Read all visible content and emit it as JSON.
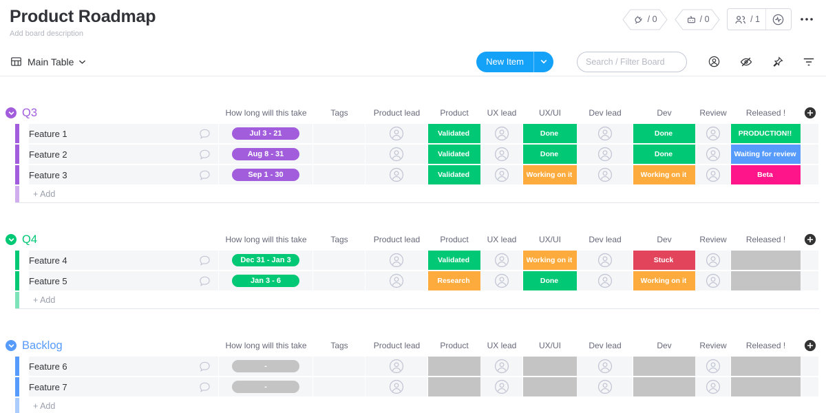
{
  "header": {
    "title": "Product Roadmap",
    "description": "Add board description",
    "counters": [
      {
        "icon": "integrations-icon",
        "label": "/ 0"
      },
      {
        "icon": "automations-icon",
        "label": "/ 0"
      },
      {
        "icon": "members-icon",
        "label": "/ 1"
      }
    ]
  },
  "toolbar": {
    "view_label": "Main Table",
    "new_item_label": "New Item",
    "search_placeholder": "Search / Filter Board"
  },
  "columns": {
    "labels": [
      "How long will this take",
      "Tags",
      "Product lead",
      "Product",
      "UX lead",
      "UX/UI",
      "Dev lead",
      "Dev",
      "Review",
      "Released !"
    ]
  },
  "icons": {
    "view": "table-grid-icon",
    "toolbar_right": [
      "person-icon",
      "hidden-eye-icon",
      "pin-icon",
      "filter-icon"
    ],
    "row": [
      "chat-bubble-icon",
      "avatar-icon"
    ],
    "group": [
      "collapse-chevron-icon",
      "add-column-plus-icon"
    ]
  },
  "colors": {
    "accent_blue": "#14a1f8",
    "status_green": "#00c875",
    "status_bright_green": "#00ca72",
    "status_orange": "#fdab3d",
    "status_red": "#e2445c",
    "status_blue": "#579bfc",
    "status_pink": "#ff158a",
    "status_gray": "#c4c4c4",
    "group_purple": "#a25ddc",
    "group_green": "#00c875",
    "group_blue": "#579bfc"
  },
  "groups": [
    {
      "title": "Q3",
      "color": "#a25ddc",
      "add_label": "+ Add",
      "rows": [
        {
          "name": "Feature 1",
          "timeline": {
            "label": "Jul 3 - 21",
            "color": "#a25ddc"
          },
          "product": {
            "label": "Validated",
            "color": "#00c875"
          },
          "uxui": {
            "label": "Done",
            "color": "#00c875"
          },
          "dev": {
            "label": "Done",
            "color": "#00c875"
          },
          "released": {
            "label": "PRODUCTION!!",
            "color": "#00ca72"
          }
        },
        {
          "name": "Feature 2",
          "timeline": {
            "label": "Aug 8 - 31",
            "color": "#a25ddc"
          },
          "product": {
            "label": "Validated",
            "color": "#00c875"
          },
          "uxui": {
            "label": "Done",
            "color": "#00c875"
          },
          "dev": {
            "label": "Done",
            "color": "#00c875"
          },
          "released": {
            "label": "Waiting for review",
            "color": "#579bfc"
          }
        },
        {
          "name": "Feature 3",
          "timeline": {
            "label": "Sep 1 - 30",
            "color": "#a25ddc"
          },
          "product": {
            "label": "Validated",
            "color": "#00c875"
          },
          "uxui": {
            "label": "Working on it",
            "color": "#fdab3d"
          },
          "dev": {
            "label": "Working on it",
            "color": "#fdab3d"
          },
          "released": {
            "label": "Beta",
            "color": "#ff158a"
          }
        }
      ]
    },
    {
      "title": "Q4",
      "color": "#00c875",
      "add_label": "+ Add",
      "rows": [
        {
          "name": "Feature 4",
          "timeline": {
            "label": "Dec 31 - Jan 3",
            "color": "#00c875"
          },
          "product": {
            "label": "Validated",
            "color": "#00c875"
          },
          "uxui": {
            "label": "Working on it",
            "color": "#fdab3d"
          },
          "dev": {
            "label": "Stuck",
            "color": "#e2445c"
          },
          "released": {
            "label": "",
            "color": "#c4c4c4"
          }
        },
        {
          "name": "Feature 5",
          "timeline": {
            "label": "Jan 3 - 6",
            "color": "#00c875"
          },
          "product": {
            "label": "Research",
            "color": "#fdab3d"
          },
          "uxui": {
            "label": "Done",
            "color": "#00c875"
          },
          "dev": {
            "label": "Working on it",
            "color": "#fdab3d"
          },
          "released": {
            "label": "",
            "color": "#c4c4c4"
          }
        }
      ]
    },
    {
      "title": "Backlog",
      "color": "#579bfc",
      "add_label": "+ Add",
      "rows": [
        {
          "name": "Feature 6",
          "timeline": {
            "label": "-",
            "color": "#c4c4c4"
          },
          "product": {
            "label": "",
            "color": "#c4c4c4"
          },
          "uxui": {
            "label": "",
            "color": "#c4c4c4"
          },
          "dev": {
            "label": "",
            "color": "#c4c4c4"
          },
          "released": {
            "label": "",
            "color": "#c4c4c4"
          }
        },
        {
          "name": "Feature 7",
          "timeline": {
            "label": "-",
            "color": "#c4c4c4"
          },
          "product": {
            "label": "",
            "color": "#c4c4c4"
          },
          "uxui": {
            "label": "",
            "color": "#c4c4c4"
          },
          "dev": {
            "label": "",
            "color": "#c4c4c4"
          },
          "released": {
            "label": "",
            "color": "#c4c4c4"
          }
        }
      ]
    }
  ]
}
